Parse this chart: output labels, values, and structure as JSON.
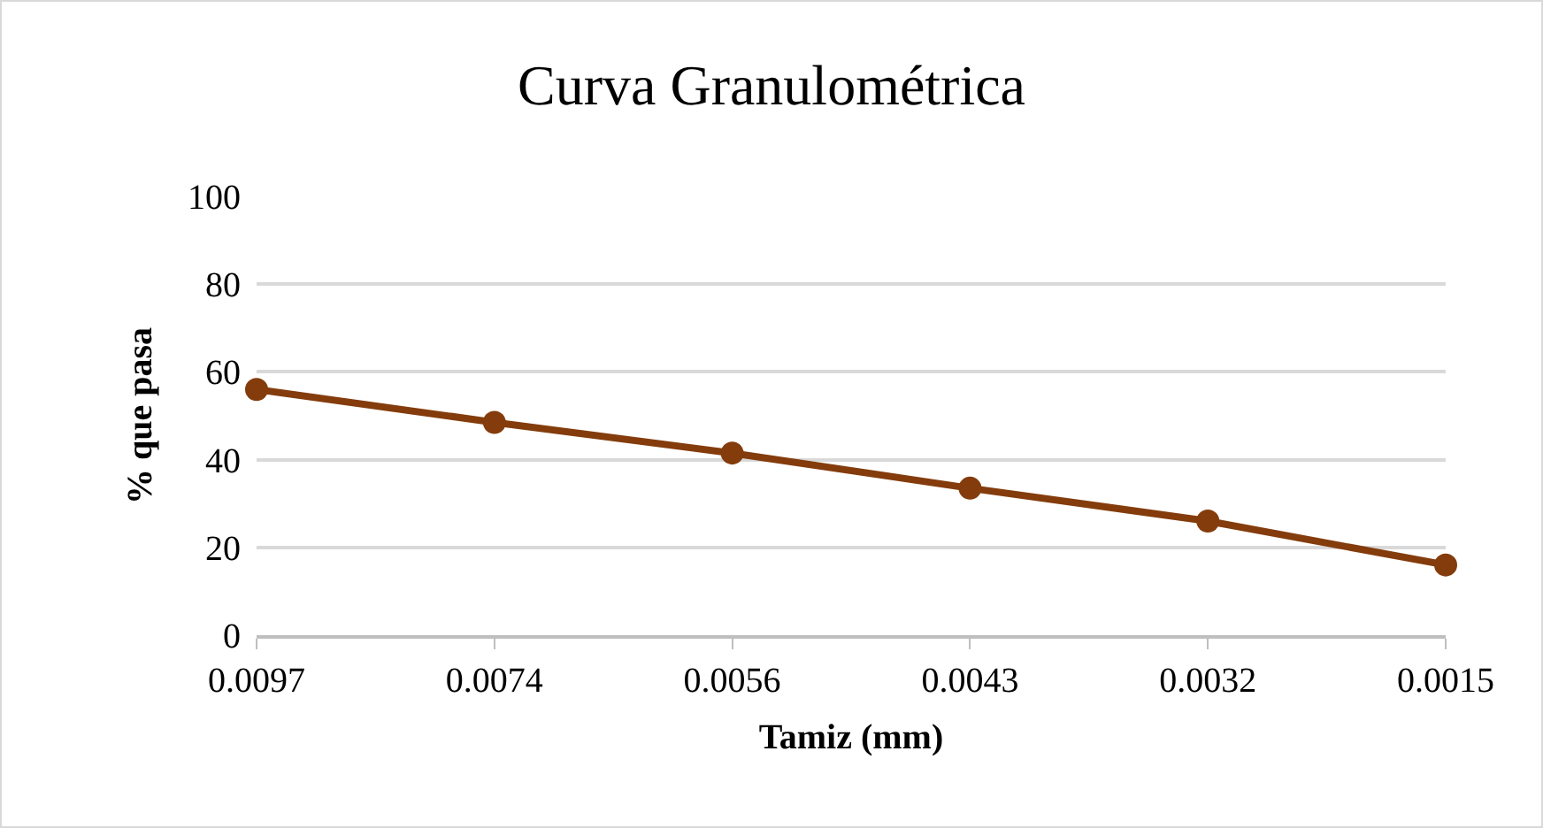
{
  "chart_data": {
    "type": "line",
    "title": "Curva Granulométrica",
    "xlabel": "Tamiz (mm)",
    "ylabel": "% que pasa",
    "categories": [
      "0.0097",
      "0.0074",
      "0.0056",
      "0.0043",
      "0.0032",
      "0.0015"
    ],
    "series": [
      {
        "color": "#843c0c",
        "values": [
          56,
          48.5,
          41.5,
          33.5,
          26,
          16
        ]
      }
    ],
    "ylim": [
      0,
      100
    ],
    "yticks": [
      0,
      20,
      40,
      60,
      80,
      100
    ],
    "grid": "y",
    "marker": "circle",
    "line_style": "solid",
    "legend": false
  }
}
